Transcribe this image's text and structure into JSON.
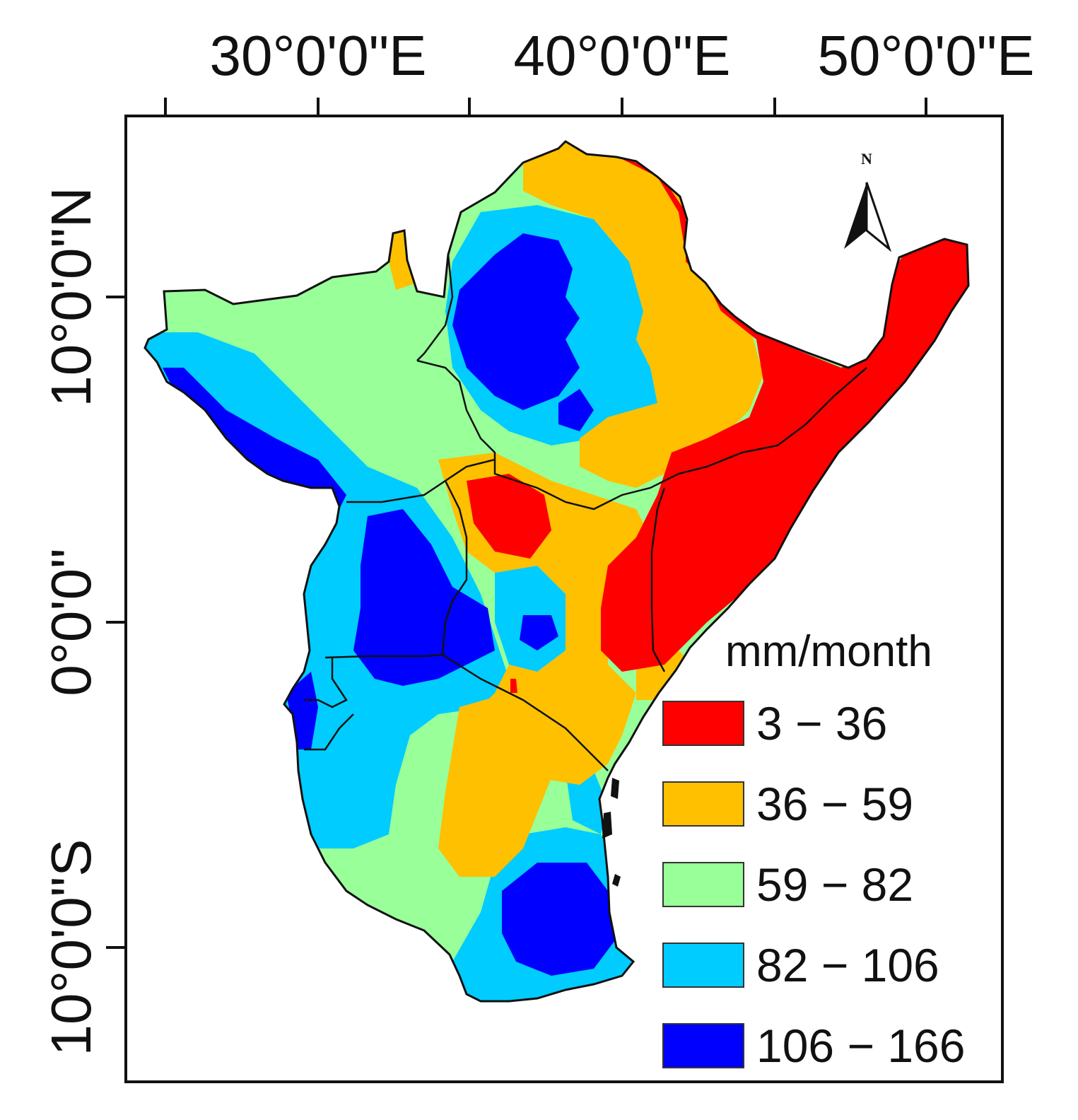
{
  "map": {
    "top_axis_labels": [
      "30°0'0\"E",
      "40°0'0\"E",
      "50°0'0\"E"
    ],
    "left_axis_labels": [
      "10°0'0\"N",
      "0°0'0\"",
      "10°0'0\"S"
    ],
    "north_arrow": {
      "letter": "N"
    },
    "legend": {
      "title": "mm/month",
      "classes": [
        {
          "label": "3 − 36",
          "color": "#ff0000"
        },
        {
          "label": "36 − 59",
          "color": "#ffc000"
        },
        {
          "label": "59 − 82",
          "color": "#99ff99"
        },
        {
          "label": "82 − 106",
          "color": "#00ccff"
        },
        {
          "label": "106 − 166",
          "color": "#0000ff"
        }
      ]
    }
  }
}
